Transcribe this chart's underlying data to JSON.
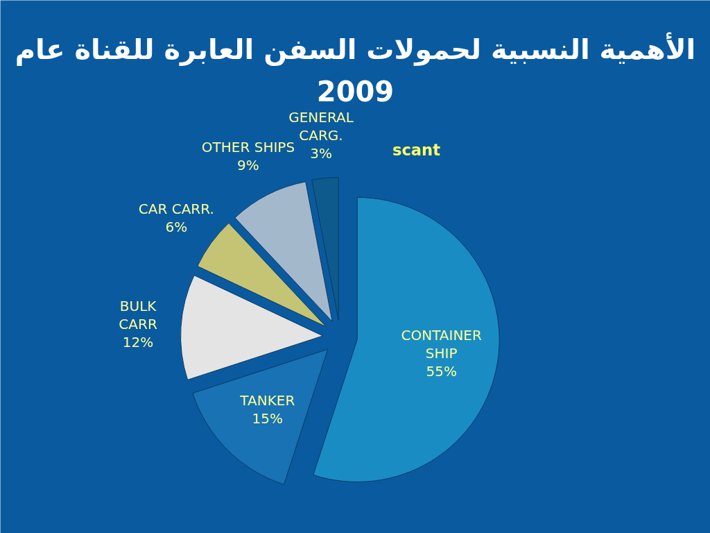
{
  "chart_data": {
    "type": "pie",
    "title": "الأهمية النسبية لحمولات السفن العابرة للقناة عام\n2009",
    "categories": [
      "CONTAINER\nSHIP",
      "TANKER",
      "BULK\nCARR",
      "CAR CARR.",
      "OTHER SHIPS",
      "GENERAL\nCARG."
    ],
    "values": [
      55,
      15,
      12,
      6,
      9,
      3
    ],
    "colors": [
      "#1a8cc4",
      "#1872b4",
      "#e4e4e4",
      "#c4c474",
      "#a4b8cc",
      "#0e5a8c"
    ],
    "value_labels": [
      "55%",
      "15%",
      "12%",
      "6%",
      "9%",
      "3%"
    ],
    "annotations": [
      "scant"
    ]
  }
}
